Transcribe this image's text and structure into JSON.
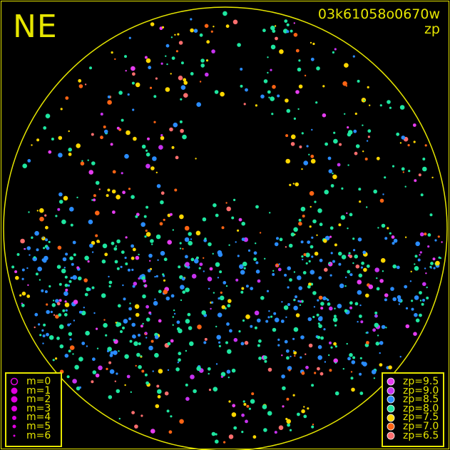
{
  "direction_label": "NE",
  "title": "03k61058o0670w",
  "subtitle": "zp",
  "colors": {
    "frame": "#e6e600",
    "background": "#000000"
  },
  "magnitude_legend": [
    {
      "label": "m=0",
      "size": 0
    },
    {
      "label": "m=1",
      "size": 1
    },
    {
      "label": "m=2",
      "size": 2
    },
    {
      "label": "m=3",
      "size": 3
    },
    {
      "label": "m=4",
      "size": 4
    },
    {
      "label": "m=5",
      "size": 5
    },
    {
      "label": "m=6",
      "size": 6
    }
  ],
  "zp_legend": [
    {
      "label": "zp=9.5",
      "color": "#e63cf0"
    },
    {
      "label": "zp=9.0",
      "color": "#c832f0"
    },
    {
      "label": "zp=8.5",
      "color": "#2a8cff"
    },
    {
      "label": "zp=8.0",
      "color": "#1ee6a0"
    },
    {
      "label": "zp=7.5",
      "color": "#ffd700"
    },
    {
      "label": "zp=7.0",
      "color": "#ff6414"
    },
    {
      "label": "zp=6.5",
      "color": "#ff6e6e"
    }
  ],
  "chart_data": {
    "type": "scatter",
    "title": "03k61058o0670w",
    "subtitle": "zp",
    "projection": "all-sky circle",
    "legend_placement": [
      "bottom-left",
      "bottom-right"
    ],
    "grid": false
  }
}
